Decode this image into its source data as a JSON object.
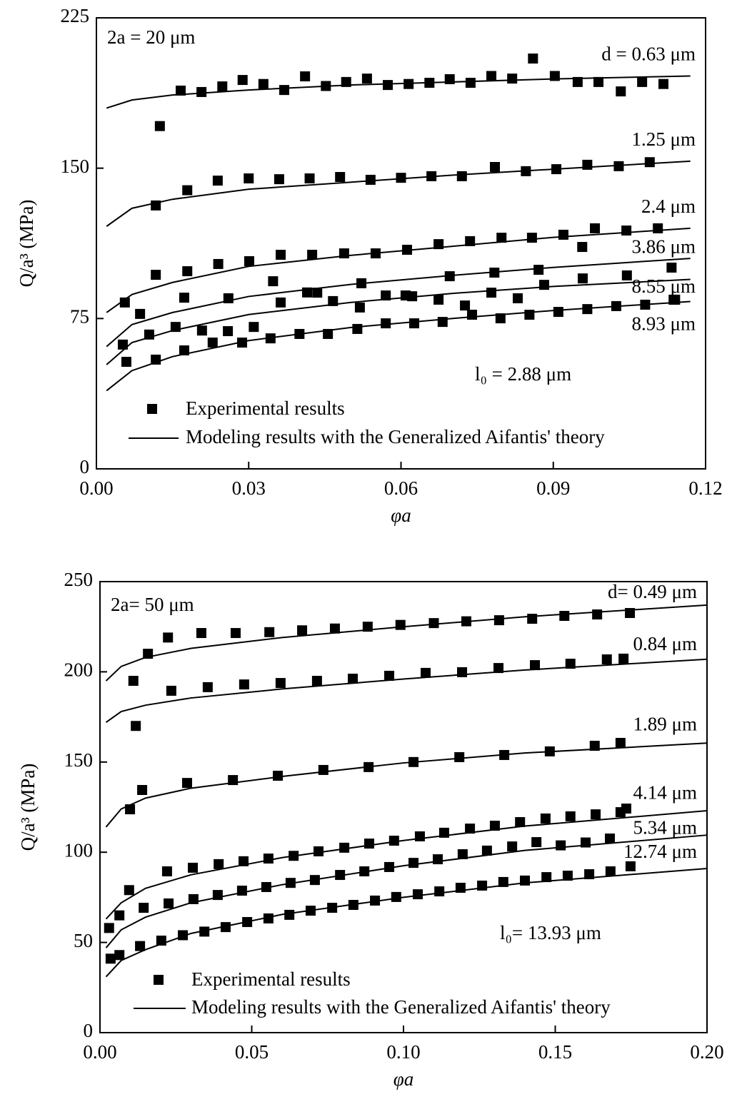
{
  "chart_data": [
    {
      "type": "scatter",
      "xlabel": "φa",
      "ylabel": "Q/a³ (MPa)",
      "xlim": [
        0,
        0.12
      ],
      "ylim": [
        0,
        225
      ],
      "xticks": [
        {
          "value": 0,
          "label": "0.00"
        },
        {
          "value": 0.03,
          "label": "0.03"
        },
        {
          "value": 0.06,
          "label": "0.06"
        },
        {
          "value": 0.09,
          "label": "0.09"
        },
        {
          "value": 0.12,
          "label": "0.12"
        }
      ],
      "yticks": [
        0,
        75,
        150,
        225
      ],
      "annotations": [
        "2a = 20 μm",
        "l₀ = 2.88 μm"
      ],
      "legend": [
        "Experimental results",
        "Modeling results with the Generalized Aifantis' theory"
      ],
      "color": "#000000",
      "series": [
        {
          "name": "d = 0.63 μm",
          "x": [
            0.0125,
            0.0166,
            0.0207,
            0.0248,
            0.0288,
            0.0329,
            0.037,
            0.0411,
            0.0452,
            0.0492,
            0.0533,
            0.0574,
            0.0615,
            0.0656,
            0.0696,
            0.0737,
            0.0778,
            0.0819,
            0.086,
            0.0903,
            0.0948,
            0.0989,
            0.1033,
            0.1075,
            0.1117
          ],
          "values": [
            171,
            188.7,
            188,
            190.8,
            194,
            192,
            189,
            195.8,
            191,
            193,
            194.7,
            191.5,
            192,
            192.6,
            194.4,
            192.6,
            196,
            194.7,
            204.7,
            196,
            193,
            193,
            188.3,
            193,
            192
          ],
          "model_x": [
            0.002,
            0.007,
            0.015,
            0.03,
            0.05,
            0.07,
            0.09,
            0.117
          ],
          "model_values": [
            180,
            184,
            186.5,
            189,
            191.5,
            193,
            194.5,
            196
          ]
        },
        {
          "name": "1.25 μm",
          "x": [
            0.0117,
            0.0179,
            0.0239,
            0.03,
            0.036,
            0.042,
            0.048,
            0.054,
            0.06,
            0.066,
            0.072,
            0.0785,
            0.0846,
            0.0906,
            0.0967,
            0.1029,
            0.109
          ],
          "values": [
            131.4,
            139,
            143.8,
            144.9,
            144.5,
            144.9,
            145.6,
            144.2,
            145.2,
            146,
            146,
            150.6,
            148.5,
            149.5,
            151.7,
            151,
            153
          ],
          "model_x": [
            0.002,
            0.007,
            0.015,
            0.03,
            0.05,
            0.07,
            0.09,
            0.117
          ],
          "model_values": [
            121,
            130,
            134.5,
            139.5,
            143,
            146.5,
            149.5,
            153.5
          ]
        },
        {
          "name": "2.4 μm",
          "x": [
            0.0117,
            0.0179,
            0.024,
            0.0301,
            0.0363,
            0.0425,
            0.0488,
            0.055,
            0.0612,
            0.0674,
            0.0736,
            0.0798,
            0.0858,
            0.092,
            0.0957,
            0.0982,
            0.1044,
            0.1106
          ],
          "values": [
            96.8,
            98.6,
            102.2,
            103.6,
            106.8,
            106.8,
            107.5,
            107.5,
            109.3,
            112.1,
            113.6,
            115.3,
            115.3,
            116.8,
            110.7,
            120,
            118.9,
            120
          ],
          "model_x": [
            0.002,
            0.007,
            0.015,
            0.03,
            0.05,
            0.07,
            0.09,
            0.117
          ],
          "model_values": [
            78,
            87,
            93,
            101,
            106.5,
            111,
            115.5,
            120
          ]
        },
        {
          "name": "3.86 μm",
          "x": [
            0.0056,
            0.0086,
            0.0173,
            0.026,
            0.0348,
            0.0435,
            0.0522,
            0.0609,
            0.0696,
            0.0784,
            0.0871,
            0.0958,
            0.1045,
            0.1133
          ],
          "values": [
            83,
            77.3,
            85.4,
            85.1,
            93.6,
            87.9,
            92.6,
            86.5,
            96.1,
            97.9,
            99.3,
            95,
            96.5,
            100.4
          ],
          "model_x": [
            0.002,
            0.007,
            0.015,
            0.03,
            0.05,
            0.07,
            0.09,
            0.117
          ],
          "model_values": [
            61,
            72,
            78,
            86,
            92,
            96.5,
            100.5,
            105
          ]
        },
        {
          "name": "8.55 μm",
          "x": [
            0.0052,
            0.0104,
            0.0156,
            0.0208,
            0.0259,
            0.031,
            0.0363,
            0.0415,
            0.0466,
            0.0519,
            0.057,
            0.0622,
            0.0674,
            0.0726,
            0.0778,
            0.083,
            0.0882,
            0.114
          ],
          "values": [
            62,
            67,
            70.8,
            69,
            68.7,
            70.8,
            83,
            88,
            83.7,
            80.5,
            86.5,
            86.1,
            84.4,
            81.5,
            87.9,
            85.1,
            91.8,
            84.4
          ],
          "model_x": [
            0.002,
            0.007,
            0.015,
            0.03,
            0.05,
            0.07,
            0.09,
            0.117
          ],
          "model_values": [
            52,
            63,
            69,
            77,
            83,
            87.5,
            91,
            94.5
          ]
        },
        {
          "name": "8.93 μm",
          "x": [
            0.0059,
            0.0117,
            0.0173,
            0.0229,
            0.0287,
            0.0343,
            0.04,
            0.0456,
            0.0514,
            0.057,
            0.0626,
            0.0682,
            0.074,
            0.0796,
            0.0853,
            0.091,
            0.0967,
            0.1024,
            0.1081,
            0.1137
          ],
          "values": [
            53.4,
            54.5,
            59.1,
            63,
            63,
            65.1,
            67.3,
            67.3,
            69.8,
            72.6,
            72.6,
            73.3,
            76.9,
            75.1,
            76.9,
            78.3,
            79.7,
            81.2,
            81.9,
            84.4
          ],
          "model_x": [
            0.002,
            0.007,
            0.015,
            0.03,
            0.05,
            0.07,
            0.09,
            0.117
          ],
          "model_values": [
            39,
            49,
            56,
            64,
            70.5,
            75,
            79,
            83.5
          ]
        }
      ]
    },
    {
      "type": "scatter",
      "xlabel": "φa",
      "ylabel": "Q/a³ (MPa)",
      "xlim": [
        0,
        0.2
      ],
      "ylim": [
        0,
        250
      ],
      "xticks": [
        {
          "value": 0,
          "label": "0.00"
        },
        {
          "value": 0.05,
          "label": "0.05"
        },
        {
          "value": 0.1,
          "label": "0.10"
        },
        {
          "value": 0.15,
          "label": "0.15"
        },
        {
          "value": 0.2,
          "label": "0.20"
        }
      ],
      "yticks": [
        0,
        50,
        100,
        150,
        200,
        250
      ],
      "annotations": [
        "2a= 50 μm",
        "l₀= 13.93 μm"
      ],
      "legend": [
        "Experimental results",
        "Modeling results with the Generalized Aifantis' theory"
      ],
      "color": "#000000",
      "series": [
        {
          "name": "d= 0.49 μm",
          "x": [
            0.011,
            0.0158,
            0.0224,
            0.0334,
            0.0447,
            0.0558,
            0.0666,
            0.0774,
            0.0882,
            0.099,
            0.11,
            0.1207,
            0.1315,
            0.1424,
            0.153,
            0.1638,
            0.1746
          ],
          "values": [
            195,
            210,
            219,
            221.5,
            221.5,
            222,
            223,
            224,
            225,
            226,
            227,
            228,
            228.6,
            229.4,
            231,
            231.8,
            232.6
          ],
          "model_x": [
            0.002,
            0.007,
            0.015,
            0.03,
            0.06,
            0.1,
            0.14,
            0.2
          ],
          "model_values": [
            195,
            203,
            208,
            213,
            219,
            225,
            230.5,
            237
          ]
        },
        {
          "name": "0.84 μm",
          "x": [
            0.0118,
            0.0235,
            0.0355,
            0.0475,
            0.0595,
            0.0715,
            0.0833,
            0.0953,
            0.1073,
            0.1193,
            0.1313,
            0.1433,
            0.155,
            0.167,
            0.1725
          ],
          "values": [
            170,
            189.5,
            191.5,
            193,
            193.8,
            195,
            196.2,
            197.8,
            199.4,
            199.8,
            202.1,
            203.7,
            204.5,
            206.9,
            207.3
          ],
          "model_x": [
            0.002,
            0.007,
            0.015,
            0.03,
            0.06,
            0.1,
            0.14,
            0.2
          ],
          "model_values": [
            172,
            178,
            181.5,
            185.5,
            190.5,
            196,
            201,
            207
          ]
        },
        {
          "name": "1.89 μm",
          "x": [
            0.0099,
            0.0139,
            0.0287,
            0.0438,
            0.0586,
            0.0736,
            0.0885,
            0.1033,
            0.1184,
            0.1332,
            0.1482,
            0.163,
            0.1715
          ],
          "values": [
            123.8,
            134.5,
            138.4,
            140,
            142.4,
            145.6,
            147.2,
            150,
            152.7,
            153.9,
            155.9,
            159,
            160.6
          ],
          "model_x": [
            0.002,
            0.007,
            0.015,
            0.03,
            0.06,
            0.1,
            0.14,
            0.2
          ],
          "model_values": [
            114,
            124,
            130,
            135.5,
            142,
            149.5,
            155,
            160.5
          ]
        },
        {
          "name": "4.14 μm",
          "x": [
            0.003,
            0.0096,
            0.0221,
            0.0306,
            0.0391,
            0.0473,
            0.0555,
            0.0638,
            0.072,
            0.0805,
            0.0887,
            0.0969,
            0.1054,
            0.1134,
            0.1219,
            0.1301,
            0.1384,
            0.1468,
            0.155,
            0.1633,
            0.1715,
            0.1734
          ],
          "values": [
            58,
            79,
            89.4,
            91.4,
            93.4,
            95,
            96.5,
            98,
            100.5,
            102.5,
            104.8,
            106.4,
            108.8,
            110.8,
            113.1,
            114.7,
            116.7,
            118.7,
            119.9,
            121,
            122.2,
            124.2
          ],
          "model_x": [
            0.002,
            0.007,
            0.015,
            0.03,
            0.06,
            0.1,
            0.14,
            0.2
          ],
          "model_values": [
            63,
            72,
            80,
            87.5,
            97,
            106.5,
            114.5,
            123
          ]
        },
        {
          "name": "5.34 μm",
          "x": [
            0.0064,
            0.0144,
            0.0226,
            0.0308,
            0.0388,
            0.0468,
            0.0548,
            0.0628,
            0.0708,
            0.0791,
            0.0871,
            0.0953,
            0.1033,
            0.1113,
            0.1195,
            0.1275,
            0.1358,
            0.1438,
            0.1518,
            0.16,
            0.168
          ],
          "values": [
            65,
            69.2,
            71.6,
            74,
            76.3,
            78.7,
            80.7,
            83,
            84.6,
            87.4,
            89.4,
            91.8,
            94.1,
            96.1,
            98.9,
            100.9,
            103.2,
            105.6,
            103.8,
            105.4,
            107.6
          ],
          "model_x": [
            0.002,
            0.007,
            0.015,
            0.03,
            0.06,
            0.1,
            0.14,
            0.2
          ],
          "model_values": [
            47,
            57,
            64,
            72,
            82,
            92.5,
            101,
            109.5
          ]
        },
        {
          "name": "12.74 μm",
          "x": [
            0.0035,
            0.0064,
            0.0132,
            0.0202,
            0.0273,
            0.0344,
            0.0414,
            0.0485,
            0.0555,
            0.0624,
            0.0694,
            0.0765,
            0.0835,
            0.0906,
            0.0976,
            0.1047,
            0.1118,
            0.1188,
            0.1259,
            0.1329,
            0.14,
            0.1471,
            0.1541,
            0.1612,
            0.1682,
            0.1748
          ],
          "values": [
            41,
            43,
            48,
            51,
            54,
            56,
            58.5,
            61.3,
            63.3,
            65.3,
            67.6,
            69.2,
            70.8,
            73.2,
            75.2,
            76.7,
            78.3,
            80.3,
            81.5,
            83.5,
            84.3,
            86.2,
            87,
            87.8,
            89.4,
            92.2
          ],
          "model_x": [
            0.002,
            0.007,
            0.015,
            0.03,
            0.06,
            0.1,
            0.14,
            0.2
          ],
          "model_values": [
            31,
            40,
            46,
            55,
            65.5,
            75,
            83,
            91
          ]
        }
      ]
    }
  ]
}
